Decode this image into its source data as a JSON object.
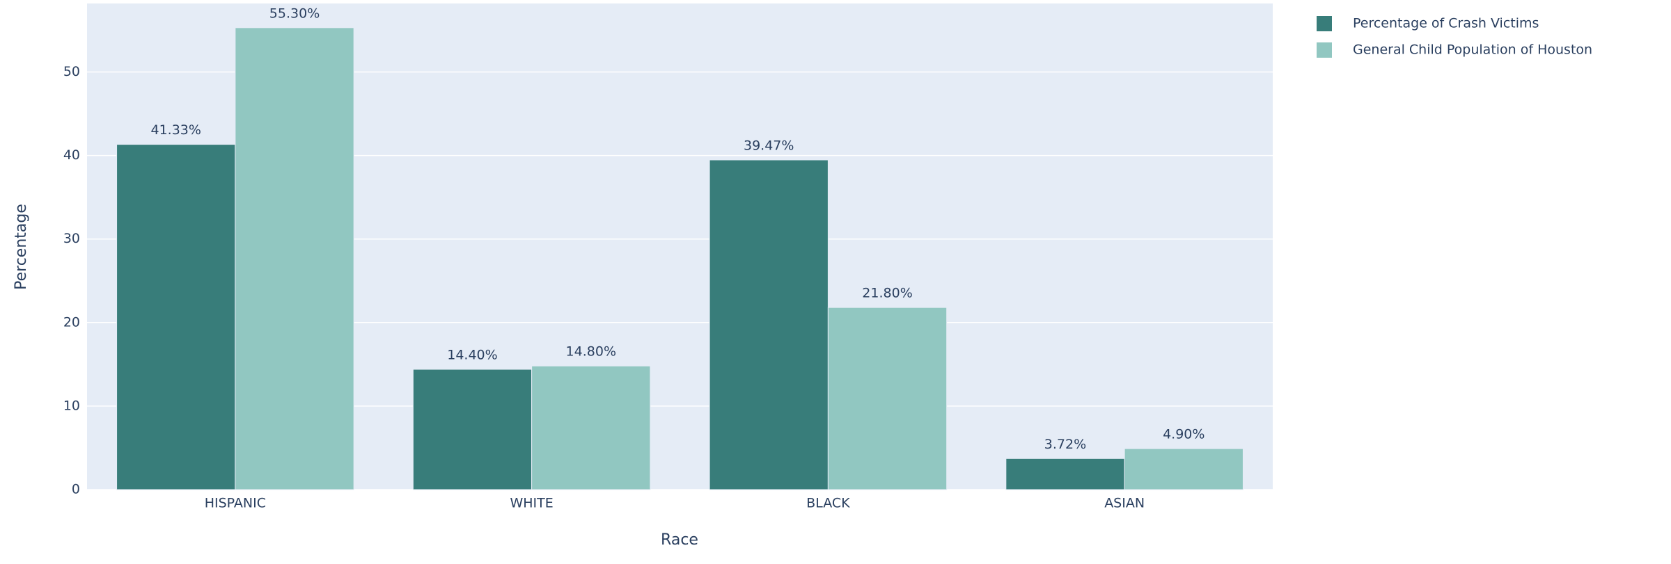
{
  "chart_data": {
    "type": "bar",
    "x_label": "Race",
    "y_label": "Percentage",
    "categories": [
      "HISPANIC",
      "WHITE",
      "BLACK",
      "ASIAN"
    ],
    "series": [
      {
        "name": "Percentage of Crash Victims",
        "color": "#387d7a",
        "values": [
          41.33,
          14.4,
          39.47,
          3.72
        ],
        "value_labels": [
          "41.33%",
          "14.40%",
          "39.47%",
          "3.72%"
        ]
      },
      {
        "name": "General Child Population of Houston",
        "color": "#91c7c1",
        "values": [
          55.3,
          14.8,
          21.8,
          4.9
        ],
        "value_labels": [
          "55.30%",
          "14.80%",
          "21.80%",
          "4.90%"
        ]
      }
    ],
    "ylim": [
      0,
      58.2
    ],
    "yticks": [
      0,
      10,
      20,
      30,
      40,
      50
    ],
    "grid": true,
    "legend": "top-right"
  }
}
